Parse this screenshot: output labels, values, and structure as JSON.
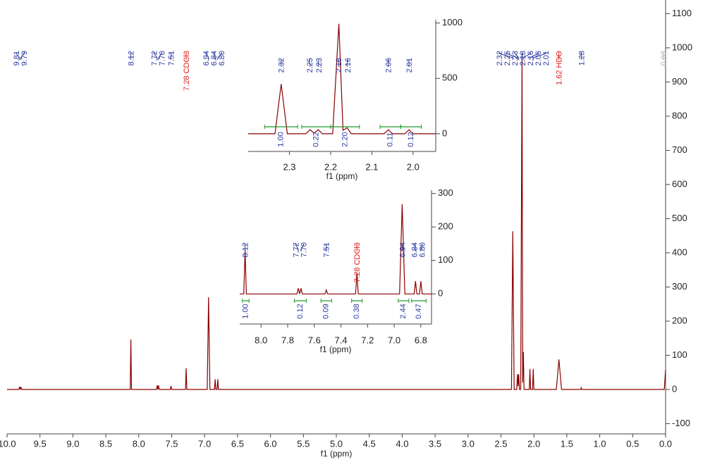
{
  "chart_data": [
    {
      "type": "line",
      "xlabel": "f1 (ppm)",
      "color": "#8b0000",
      "xlim": [
        10.0,
        0.0
      ],
      "ylim": [
        -130,
        1140
      ],
      "xticks": [
        {
          "value": 10,
          "label": "10.0"
        },
        9.5,
        {
          "value": 9,
          "label": "9.0"
        },
        8.5,
        {
          "value": 8,
          "label": "8.0"
        },
        7.5,
        {
          "value": 7,
          "label": "7.0"
        },
        6.5,
        {
          "value": 6,
          "label": "6.0"
        },
        5.5,
        {
          "value": 5,
          "label": "5.0"
        },
        4.5,
        {
          "value": 4,
          "label": "4.0"
        },
        3.5,
        {
          "value": 3,
          "label": "3.0"
        },
        2.5,
        {
          "value": 2,
          "label": "2.0"
        },
        1.5,
        {
          "value": 1,
          "label": "1.0"
        },
        0.5,
        {
          "value": 0,
          "label": "0.0"
        }
      ],
      "yticks": [
        -100,
        0,
        100,
        200,
        300,
        400,
        500,
        600,
        700,
        800,
        900,
        1000,
        1100
      ],
      "x": [
        10.0,
        9.82,
        9.81,
        9.8,
        9.79,
        9.78,
        8.13,
        8.12,
        8.11,
        7.73,
        7.72,
        7.71,
        7.7,
        7.69,
        7.52,
        7.51,
        7.5,
        7.29,
        7.28,
        7.27,
        6.96,
        6.94,
        6.92,
        6.85,
        6.84,
        6.83,
        6.81,
        6.8,
        6.79,
        2.34,
        2.32,
        2.3,
        2.26,
        2.25,
        2.24,
        2.23,
        2.22,
        2.2,
        2.18,
        2.17,
        2.16,
        2.15,
        2.07,
        2.06,
        2.05,
        2.02,
        2.01,
        2.0,
        1.66,
        1.62,
        1.58,
        1.29,
        1.28,
        1.27,
        0.02,
        0.0
      ],
      "values": [
        0,
        0,
        8,
        0,
        8,
        0,
        0,
        146,
        0,
        0,
        12,
        0,
        12,
        0,
        0,
        10,
        0,
        0,
        62,
        0,
        0,
        270,
        0,
        0,
        30,
        0,
        0,
        30,
        0,
        0,
        463,
        0,
        0,
        45,
        10,
        45,
        0,
        0,
        983,
        20,
        110,
        0,
        0,
        60,
        0,
        0,
        60,
        0,
        0,
        88,
        0,
        0,
        5,
        0,
        0,
        58
      ],
      "peak_labels": [
        {
          "value": 9.81,
          "label": "9.81"
        },
        {
          "value": 9.79,
          "label": "9.79"
        },
        {
          "value": 8.12,
          "label": "8.12"
        },
        {
          "value": 7.72,
          "label": "7.72"
        },
        {
          "value": 7.7,
          "label": "7.70"
        },
        {
          "value": 7.51,
          "label": "7.51"
        },
        {
          "value": 7.28,
          "label": "7.28 CDCl3",
          "color": "#e0201b"
        },
        {
          "value": 6.94,
          "label": "6.94"
        },
        {
          "value": 6.84,
          "label": "6.84"
        },
        {
          "value": 6.8,
          "label": "6.80"
        },
        {
          "value": 2.32,
          "label": "2.32"
        },
        {
          "value": 2.25,
          "label": "2.25"
        },
        {
          "value": 2.23,
          "label": "2.23"
        },
        {
          "value": 2.18,
          "label": "2.18"
        },
        {
          "value": 2.16,
          "label": "2.16"
        },
        {
          "value": 2.06,
          "label": "2.06"
        },
        {
          "value": 2.01,
          "label": "2.01"
        },
        {
          "value": 1.62,
          "label": "1.62 HDO",
          "color": "#e0201b"
        },
        {
          "value": 1.28,
          "label": "1.28"
        },
        {
          "value": 0.03,
          "label": "0.03",
          "color": "#b0b0b0"
        }
      ]
    },
    {
      "type": "line",
      "xlabel": "f1 (ppm)",
      "color": "#8b0000",
      "xlim": [
        2.4,
        1.945
      ],
      "ylim": [
        -160,
        1030
      ],
      "xticks": [
        2.3,
        2.2,
        2.1,
        {
          "value": 2,
          "label": "2.0"
        }
      ],
      "yticks": [
        0,
        500,
        1000
      ],
      "x": [
        2.4,
        2.335,
        2.32,
        2.305,
        2.26,
        2.25,
        2.24,
        2.23,
        2.22,
        2.195,
        2.18,
        2.17,
        2.16,
        2.15,
        2.07,
        2.06,
        2.05,
        2.02,
        2.01,
        2.0,
        1.945
      ],
      "values": [
        0,
        0,
        449,
        0,
        0,
        36,
        5,
        36,
        0,
        0,
        993,
        30,
        54,
        0,
        0,
        36,
        0,
        0,
        36,
        0,
        0
      ],
      "peak_labels": [
        {
          "value": 2.32,
          "label": "2.32"
        },
        {
          "value": 2.25,
          "label": "2.25"
        },
        {
          "value": 2.23,
          "label": "2.23"
        },
        {
          "value": 2.18,
          "label": "2.18"
        },
        {
          "value": 2.16,
          "label": "2.16"
        },
        {
          "value": 2.06,
          "label": "2.06"
        },
        {
          "value": 2.01,
          "label": "2.01"
        }
      ],
      "integrals": [
        {
          "range": [
            2.36,
            2.28
          ],
          "value": 1.0,
          "label": "1.00"
        },
        {
          "range": [
            2.27,
            2.2
          ],
          "value": 0.22,
          "label": "0.22"
        },
        {
          "range": [
            2.2,
            2.13
          ],
          "value": 2.2,
          "label": "2.20"
        },
        {
          "range": [
            2.08,
            2.03
          ],
          "value": 0.11,
          "label": "0.11"
        },
        {
          "range": [
            2.03,
            1.98
          ],
          "value": 0.12,
          "label": "0.12"
        }
      ]
    },
    {
      "type": "line",
      "xlabel": "f1 (ppm)",
      "color": "#8b0000",
      "xlim": [
        8.16,
        6.72
      ],
      "ylim": [
        -90,
        310
      ],
      "xticks": [
        {
          "value": 8,
          "label": "8.0"
        },
        7.8,
        7.6,
        7.4,
        7.2,
        {
          "value": 7,
          "label": "7.0"
        },
        6.8
      ],
      "yticks": [
        0,
        100,
        200,
        300
      ],
      "x": [
        8.16,
        8.13,
        8.12,
        8.11,
        7.73,
        7.72,
        7.71,
        7.7,
        7.69,
        7.52,
        7.51,
        7.5,
        7.29,
        7.28,
        7.27,
        6.96,
        6.94,
        6.92,
        6.85,
        6.84,
        6.83,
        6.81,
        6.8,
        6.79,
        6.72
      ],
      "values": [
        0,
        0,
        132,
        0,
        0,
        17,
        0,
        17,
        0,
        0,
        12,
        0,
        0,
        63,
        0,
        0,
        268,
        0,
        0,
        38,
        0,
        0,
        38,
        0,
        0
      ],
      "peak_labels": [
        {
          "value": 8.12,
          "label": "8.12"
        },
        {
          "value": 7.72,
          "label": "7.72"
        },
        {
          "value": 7.7,
          "label": "7.70"
        },
        {
          "value": 7.51,
          "label": "7.51"
        },
        {
          "value": 7.28,
          "label": "7.28 CDCl3",
          "color": "#e0201b"
        },
        {
          "value": 6.94,
          "label": "6.94"
        },
        {
          "value": 6.84,
          "label": "6.84"
        },
        {
          "value": 6.8,
          "label": "6.80"
        }
      ],
      "integrals": [
        {
          "range": [
            8.14,
            8.09
          ],
          "value": 1.0,
          "label": "1.00"
        },
        {
          "range": [
            7.75,
            7.66
          ],
          "value": 0.12,
          "label": "0.12"
        },
        {
          "range": [
            7.55,
            7.47
          ],
          "value": 0.09,
          "label": "0.09"
        },
        {
          "range": [
            7.32,
            7.24
          ],
          "value": 0.38,
          "label": "0.38"
        },
        {
          "range": [
            6.97,
            6.89
          ],
          "value": 2.44,
          "label": "2.44"
        },
        {
          "range": [
            6.87,
            6.76
          ],
          "value": 0.47,
          "label": "0.47"
        }
      ]
    }
  ]
}
